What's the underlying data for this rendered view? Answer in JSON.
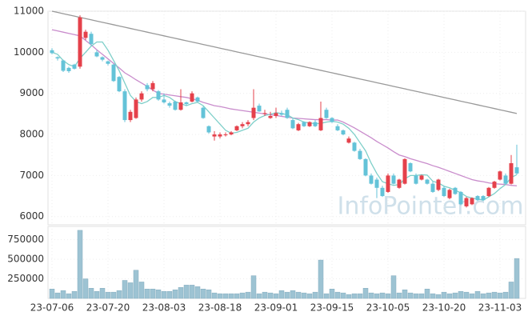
{
  "chart_data": {
    "type": "candlestick",
    "watermark": "InfoPointer.com",
    "up_color": "#e5414b",
    "down_color": "#64c3d8",
    "grid": true,
    "categories": [
      "23-07-06",
      null,
      null,
      null,
      null,
      null,
      null,
      null,
      null,
      null,
      "23-07-20",
      null,
      null,
      null,
      null,
      null,
      null,
      null,
      null,
      null,
      "23-08-03",
      null,
      null,
      null,
      null,
      null,
      null,
      null,
      null,
      null,
      "23-08-18",
      null,
      null,
      null,
      null,
      null,
      null,
      null,
      null,
      null,
      "23-09-01",
      null,
      null,
      null,
      null,
      null,
      null,
      null,
      null,
      null,
      "23-09-15",
      null,
      null,
      null,
      null,
      null,
      null,
      null,
      null,
      null,
      "23-10-05",
      null,
      null,
      null,
      null,
      null,
      null,
      null,
      null,
      null,
      "23-10-20",
      null,
      null,
      null,
      null,
      null,
      null,
      null,
      null,
      null,
      "23-11-03",
      null,
      null,
      null
    ],
    "open": [
      10050,
      9880,
      9800,
      9620,
      9700,
      9650,
      10350,
      10450,
      10000,
      9880,
      9780,
      9700,
      9400,
      9050,
      8350,
      8400,
      8850,
      9200,
      9100,
      9050,
      8850,
      8760,
      8800,
      8600,
      8780,
      8800,
      8900,
      8650,
      8200,
      7950,
      7950,
      7980,
      8000,
      8100,
      8200,
      8250,
      8400,
      8700,
      8500,
      8400,
      8450,
      8520,
      8600,
      8350,
      8100,
      8300,
      8200,
      8300,
      8100,
      8600,
      8400,
      8200,
      8100,
      7800,
      7800,
      7600,
      7400,
      7000,
      6900,
      6700,
      6600,
      7000,
      6700,
      6800,
      7300,
      7000,
      6900,
      6900,
      6800,
      6650,
      6700,
      6450,
      6700,
      6600,
      6250,
      6300,
      6500,
      6500,
      6500,
      6700,
      6900,
      7000,
      6800,
      7200
    ],
    "high": [
      10100,
      9900,
      9820,
      9650,
      9720,
      10900,
      10550,
      10500,
      10050,
      9900,
      9800,
      9720,
      9420,
      9100,
      8600,
      8900,
      9050,
      9250,
      9300,
      9080,
      9000,
      8800,
      8820,
      9100,
      8800,
      9050,
      8920,
      8680,
      8220,
      8080,
      8050,
      8050,
      8080,
      8220,
      8300,
      8350,
      9100,
      8750,
      8600,
      8550,
      8650,
      8580,
      8650,
      8400,
      8280,
      8320,
      8320,
      8350,
      8800,
      8650,
      8420,
      8250,
      8120,
      7950,
      7820,
      7650,
      7420,
      7050,
      6950,
      6750,
      7050,
      7050,
      6920,
      7420,
      7320,
      7050,
      7020,
      6920,
      6850,
      6920,
      6750,
      6680,
      6720,
      6620,
      6480,
      6470,
      6520,
      6520,
      6720,
      6870,
      7120,
      7050,
      7500,
      7750
    ],
    "low": [
      9950,
      9800,
      9520,
      9500,
      9580,
      9600,
      10300,
      10150,
      9880,
      9780,
      9680,
      9280,
      9030,
      8300,
      8300,
      8380,
      8800,
      9050,
      9050,
      8820,
      8750,
      8650,
      8580,
      8580,
      8700,
      8780,
      8780,
      8380,
      8020,
      7850,
      7900,
      7950,
      7980,
      8080,
      8150,
      8200,
      8350,
      8550,
      8450,
      8380,
      8400,
      8450,
      8380,
      8130,
      8080,
      8180,
      8180,
      8180,
      8080,
      8380,
      8280,
      8080,
      7980,
      7780,
      7580,
      7380,
      6980,
      6780,
      6450,
      6480,
      6580,
      6780,
      6680,
      6780,
      7080,
      6780,
      6880,
      6780,
      6580,
      6620,
      6480,
      6420,
      6530,
      6280,
      6220,
      6280,
      6380,
      6380,
      6480,
      6680,
      6880,
      6780,
      6780,
      7020
    ],
    "close": [
      9980,
      9850,
      9550,
      9540,
      9600,
      10850,
      10500,
      10200,
      9900,
      9820,
      9720,
      9300,
      9050,
      8350,
      8550,
      8850,
      9000,
      9100,
      9250,
      8850,
      8780,
      8700,
      8600,
      8780,
      8740,
      9000,
      8800,
      8400,
      8050,
      8000,
      8000,
      8000,
      8050,
      8200,
      8250,
      8300,
      8650,
      8560,
      8520,
      8450,
      8520,
      8480,
      8400,
      8150,
      8250,
      8200,
      8300,
      8200,
      8400,
      8400,
      8300,
      8100,
      8000,
      7900,
      7600,
      7400,
      7000,
      6800,
      6700,
      6500,
      7000,
      6800,
      6900,
      7400,
      7100,
      6800,
      7000,
      6800,
      6600,
      6900,
      6500,
      6650,
      6550,
      6300,
      6450,
      6450,
      6400,
      6400,
      6700,
      6850,
      7100,
      6800,
      7300,
      7050
    ],
    "moving_averages": [
      {
        "color": "#7ecfc9",
        "values": [
          10000,
          9950,
          9800,
          9700,
          9650,
          9850,
          10000,
          10150,
          10250,
          10250,
          10050,
          9800,
          9550,
          9250,
          8950,
          8800,
          8750,
          8800,
          8900,
          8900,
          8950,
          8900,
          8800,
          8750,
          8700,
          8750,
          8780,
          8700,
          8550,
          8400,
          8250,
          8100,
          8030,
          8050,
          8100,
          8150,
          8300,
          8400,
          8460,
          8490,
          8530,
          8510,
          8480,
          8400,
          8360,
          8300,
          8280,
          8260,
          8270,
          8300,
          8320,
          8300,
          8250,
          8150,
          8000,
          7800,
          7600,
          7300,
          7050,
          6850,
          6800,
          6760,
          6780,
          6920,
          7000,
          7000,
          7020,
          7010,
          6860,
          6820,
          6740,
          6700,
          6640,
          6580,
          6490,
          6450,
          6430,
          6400,
          6480,
          6560,
          6680,
          6780,
          6950,
          7020
        ]
      },
      {
        "color": "#c98ccc",
        "values": [
          10550,
          10520,
          10490,
          10460,
          10430,
          10400,
          10290,
          10180,
          10060,
          9950,
          9840,
          9730,
          9620,
          9500,
          9420,
          9330,
          9250,
          9170,
          9080,
          9000,
          8980,
          8960,
          8940,
          8920,
          8900,
          8870,
          8830,
          8780,
          8740,
          8700,
          8680,
          8650,
          8620,
          8600,
          8580,
          8560,
          8540,
          8520,
          8500,
          8480,
          8460,
          8440,
          8420,
          8400,
          8390,
          8380,
          8370,
          8360,
          8360,
          8360,
          8350,
          8350,
          8300,
          8230,
          8160,
          8080,
          8000,
          7920,
          7830,
          7750,
          7670,
          7580,
          7500,
          7460,
          7410,
          7370,
          7330,
          7290,
          7240,
          7200,
          7150,
          7100,
          7050,
          7000,
          6950,
          6900,
          6870,
          6850,
          6820,
          6800,
          6790,
          6780,
          6760,
          6750
        ]
      },
      {
        "color": "#999999",
        "values": [
          11000,
          10970,
          10940,
          10910,
          10880,
          10850,
          10820,
          10790,
          10760,
          10730,
          10700,
          10670,
          10640,
          10610,
          10580,
          10550,
          10520,
          10490,
          10460,
          10430,
          10400,
          10370,
          10340,
          10310,
          10280,
          10250,
          10220,
          10190,
          10160,
          10130,
          10100,
          10070,
          10040,
          10010,
          9980,
          9950,
          9920,
          9890,
          9860,
          9830,
          9800,
          9770,
          9740,
          9710,
          9680,
          9650,
          9620,
          9590,
          9560,
          9530,
          9500,
          9470,
          9440,
          9410,
          9380,
          9350,
          9320,
          9290,
          9260,
          9230,
          9200,
          9170,
          9140,
          9110,
          9080,
          9050,
          9020,
          8990,
          8960,
          8930,
          8900,
          8870,
          8840,
          8810,
          8780,
          8750,
          8720,
          8690,
          8660,
          8630,
          8600,
          8570,
          8540,
          8510
        ]
      }
    ],
    "ylim": [
      5800,
      11000
    ],
    "yticks": [
      6000,
      7000,
      8000,
      9000,
      10000,
      11000
    ],
    "volume": {
      "color": "#9dc3d3",
      "values": [
        120000,
        70000,
        100000,
        60000,
        90000,
        870000,
        250000,
        130000,
        90000,
        130000,
        80000,
        80000,
        100000,
        230000,
        200000,
        360000,
        210000,
        120000,
        120000,
        110000,
        90000,
        90000,
        110000,
        140000,
        170000,
        170000,
        150000,
        120000,
        110000,
        70000,
        60000,
        60000,
        60000,
        60000,
        70000,
        80000,
        290000,
        60000,
        80000,
        70000,
        60000,
        100000,
        80000,
        100000,
        80000,
        70000,
        60000,
        80000,
        490000,
        60000,
        120000,
        80000,
        70000,
        50000,
        60000,
        60000,
        130000,
        70000,
        60000,
        70000,
        60000,
        290000,
        70000,
        110000,
        70000,
        60000,
        60000,
        120000,
        60000,
        50000,
        80000,
        60000,
        70000,
        90000,
        80000,
        60000,
        90000,
        60000,
        70000,
        80000,
        70000,
        80000,
        210000,
        510000
      ],
      "ylim": [
        0,
        920000
      ],
      "yticks": [
        250000,
        500000,
        750000
      ]
    }
  }
}
